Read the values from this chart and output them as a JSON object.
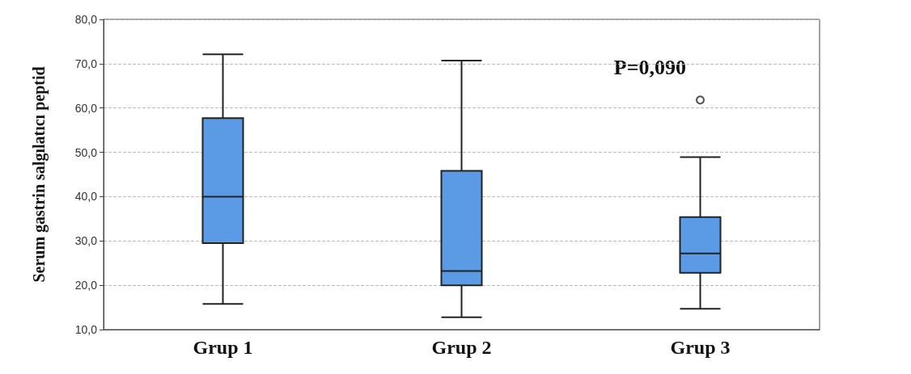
{
  "chart_data": {
    "type": "box",
    "ylabel": "Serum gastrin salgılatıcı peptid",
    "categories": [
      "Grup 1",
      "Grup 2",
      "Grup 3"
    ],
    "color": "#5b9be6",
    "boxes": [
      {
        "low": 15.8,
        "q1": 29.5,
        "median": 40,
        "q3": 57.7,
        "high": 72.1
      },
      {
        "low": 12.8,
        "q1": 20,
        "median": 23.2,
        "q3": 45.8,
        "high": 70.7
      },
      {
        "low": 14.7,
        "q1": 22.8,
        "median": 27.2,
        "q3": 35.4,
        "high": 48.9,
        "outliers": [
          61.8
        ]
      }
    ],
    "ylim": [
      10,
      80
    ],
    "yticks": [
      {
        "value": 10,
        "label": "10,0"
      },
      {
        "value": 20,
        "label": "20,0"
      },
      {
        "value": 30,
        "label": "30,0"
      },
      {
        "value": 40,
        "label": "40,0"
      },
      {
        "value": 50,
        "label": "50,0"
      },
      {
        "value": 60,
        "label": "60,0"
      },
      {
        "value": 70,
        "label": "70,0"
      },
      {
        "value": 80,
        "label": "80,0"
      }
    ],
    "grid": "y",
    "annotations": [
      "P=0,090"
    ]
  }
}
